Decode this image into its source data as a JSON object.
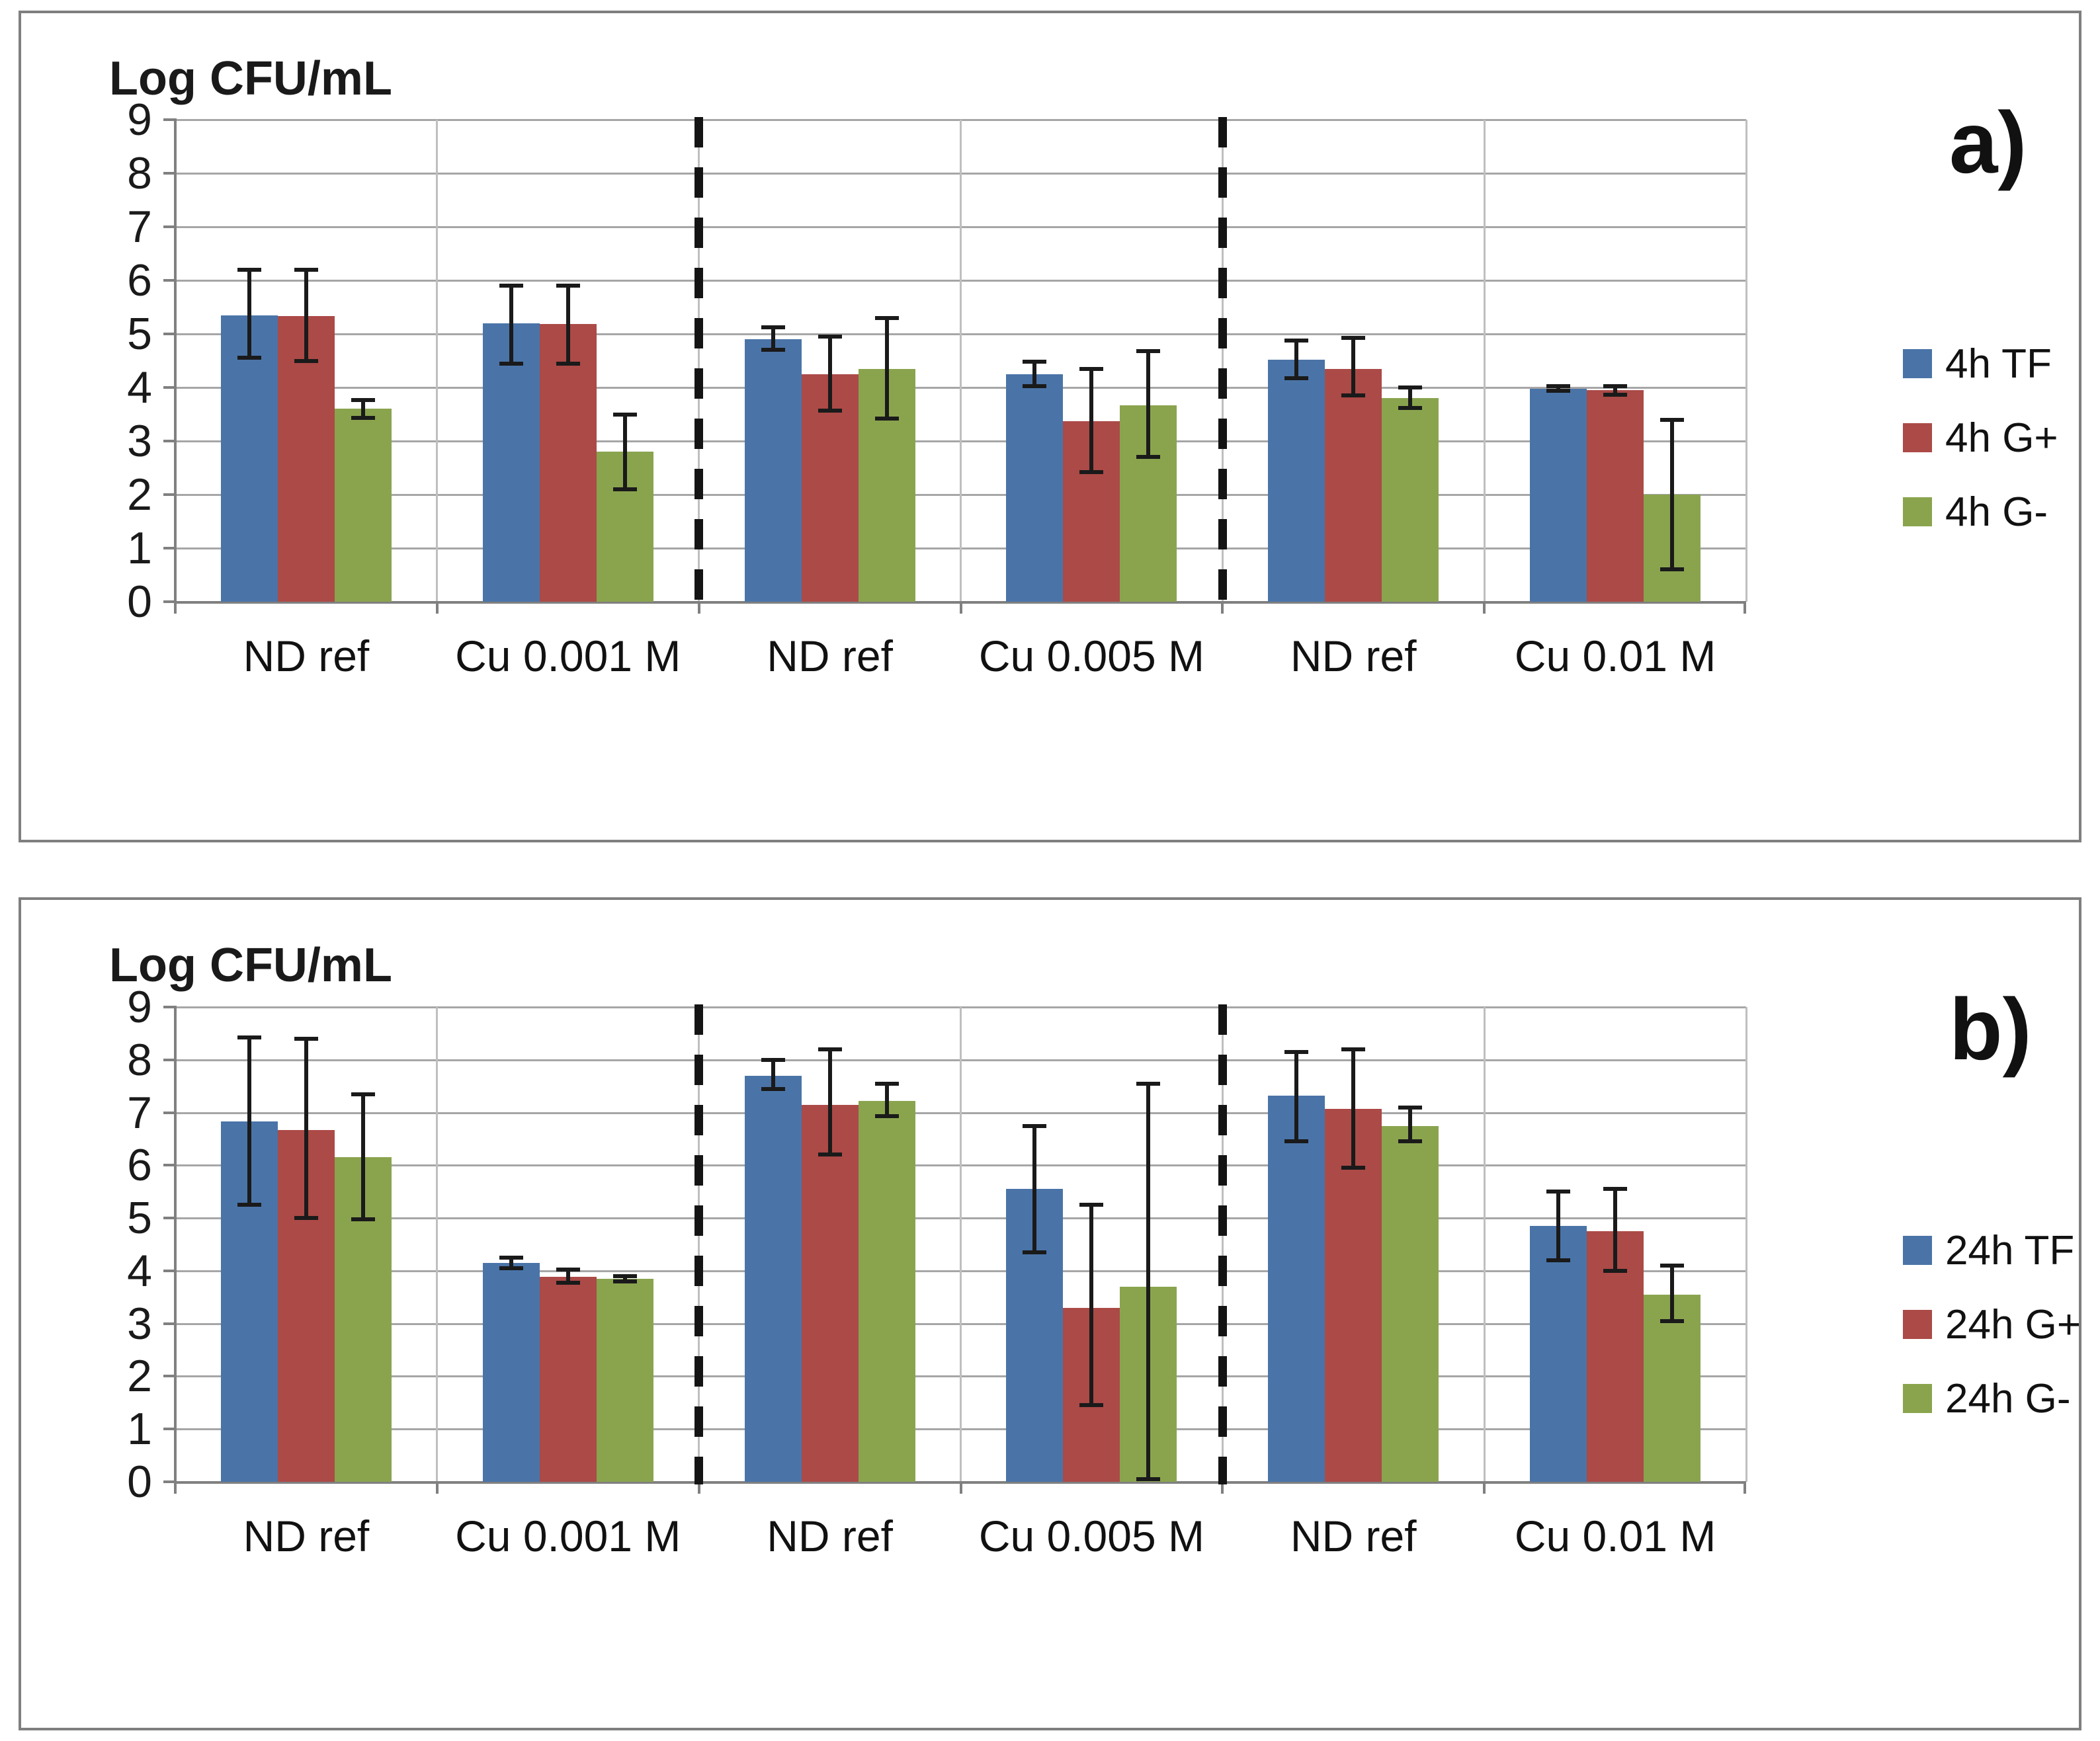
{
  "figure": {
    "background": "#ffffff",
    "panel_border_color": "#7f7f7f"
  },
  "colors": {
    "blue": "#4a74a8",
    "red": "#ab4a47",
    "green": "#8aa44e",
    "gridline": "#a6a6a6",
    "vgridline": "#bfbfbf",
    "axis": "#808080",
    "error_bar": "#1a1a1a",
    "divider": "#141414",
    "text": "#1a1a1a"
  },
  "chart_data": [
    {
      "type": "bar",
      "panel_label": "a)",
      "title": "Log CFU/mL",
      "ylabel": "Log CFU/mL",
      "ylim": [
        0,
        9
      ],
      "yticks": [
        0,
        1,
        2,
        3,
        4,
        5,
        6,
        7,
        8,
        9
      ],
      "grid": true,
      "legend_position": "right",
      "categories": [
        "ND ref",
        "Cu 0.001 M",
        "ND ref",
        "Cu 0.005 M",
        "ND ref",
        "Cu 0.01 M"
      ],
      "divider_after_category_index": [
        2,
        4
      ],
      "series": [
        {
          "name": "4h TF",
          "color_key": "blue",
          "values": [
            5.35,
            5.2,
            4.9,
            4.25,
            4.52,
            3.98
          ],
          "err_low": [
            4.55,
            4.45,
            4.7,
            4.02,
            4.17,
            3.94
          ],
          "err_high": [
            6.2,
            5.9,
            5.12,
            4.48,
            4.88,
            4.02
          ]
        },
        {
          "name": "4h G+",
          "color_key": "red",
          "values": [
            5.33,
            5.18,
            4.25,
            3.37,
            4.35,
            3.95
          ],
          "err_low": [
            4.5,
            4.45,
            3.57,
            2.42,
            3.85,
            3.86
          ],
          "err_high": [
            6.2,
            5.9,
            4.95,
            4.35,
            4.92,
            4.03
          ]
        },
        {
          "name": "4h G-",
          "color_key": "green",
          "values": [
            3.6,
            2.8,
            4.35,
            3.67,
            3.8,
            2.0
          ],
          "err_low": [
            3.43,
            2.1,
            3.42,
            2.7,
            3.62,
            0.6
          ],
          "err_high": [
            3.76,
            3.5,
            5.3,
            4.68,
            4.0,
            3.4
          ]
        }
      ]
    },
    {
      "type": "bar",
      "panel_label": "b)",
      "title": "Log CFU/mL",
      "ylabel": "Log CFU/mL",
      "ylim": [
        0,
        9
      ],
      "yticks": [
        0,
        1,
        2,
        3,
        4,
        5,
        6,
        7,
        8,
        9
      ],
      "grid": true,
      "legend_position": "right",
      "categories": [
        "ND ref",
        "Cu 0.001 M",
        "ND ref",
        "Cu 0.005 M",
        "ND ref",
        "Cu 0.01 M"
      ],
      "divider_after_category_index": [
        2,
        4
      ],
      "series": [
        {
          "name": "24h TF",
          "color_key": "blue",
          "values": [
            6.83,
            4.15,
            7.7,
            5.55,
            7.32,
            4.85
          ],
          "err_low": [
            5.25,
            4.05,
            7.45,
            4.35,
            6.45,
            4.2
          ],
          "err_high": [
            8.42,
            4.25,
            8.0,
            6.75,
            8.15,
            5.5
          ]
        },
        {
          "name": "24h G+",
          "color_key": "red",
          "values": [
            6.67,
            3.88,
            7.15,
            3.3,
            7.07,
            4.75
          ],
          "err_low": [
            5.0,
            3.77,
            6.2,
            1.45,
            5.95,
            4.0
          ],
          "err_high": [
            8.4,
            4.02,
            8.2,
            5.25,
            8.2,
            5.55
          ]
        },
        {
          "name": "24h G-",
          "color_key": "green",
          "values": [
            6.15,
            3.85,
            7.22,
            3.7,
            6.75,
            3.55
          ],
          "err_low": [
            4.98,
            3.8,
            6.93,
            0.05,
            6.45,
            3.05
          ],
          "err_high": [
            7.35,
            3.9,
            7.55,
            7.55,
            7.1,
            4.1
          ]
        }
      ]
    }
  ]
}
